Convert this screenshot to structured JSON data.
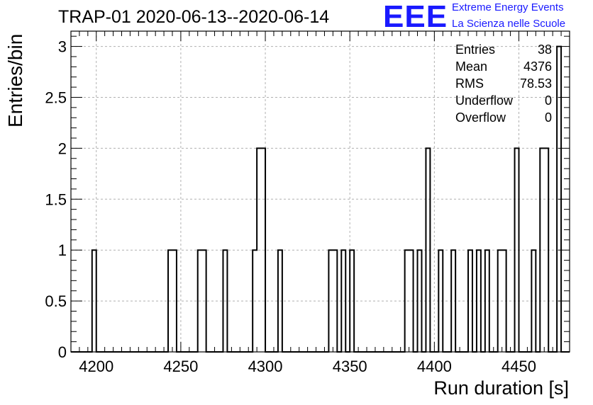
{
  "title": "TRAP-01 2020-06-13--2020-06-14",
  "logo": {
    "mark": "EEE",
    "line1": "Extreme Energy Events",
    "line2": "La Scienza nelle Scuole"
  },
  "stats": [
    {
      "label": "Entries",
      "value": "38"
    },
    {
      "label": "Mean",
      "value": "4376"
    },
    {
      "label": "RMS",
      "value": "78.53"
    },
    {
      "label": "Underflow",
      "value": "0"
    },
    {
      "label": "Overflow",
      "value": "0"
    }
  ],
  "chart_data": {
    "type": "histogram",
    "title": "TRAP-01 2020-06-13--2020-06-14",
    "xlabel": "Run duration [s]",
    "ylabel": "Entries/bin",
    "xlim": [
      4185,
      4480
    ],
    "ylim": [
      0,
      3.15
    ],
    "bin_width": 2.5,
    "grid": true,
    "x_ticks": [
      4200,
      4250,
      4300,
      4350,
      4400,
      4450
    ],
    "y_ticks": [
      0,
      0.5,
      1,
      1.5,
      2,
      2.5,
      3
    ],
    "y_tick_labels": [
      "0",
      "0.5",
      "1",
      "1.5",
      "2",
      "2.5",
      "3"
    ],
    "bins": [
      {
        "start": 4197.5,
        "count": 1
      },
      {
        "start": 4242.5,
        "count": 1
      },
      {
        "start": 4245.0,
        "count": 1
      },
      {
        "start": 4260.0,
        "count": 1
      },
      {
        "start": 4262.5,
        "count": 1
      },
      {
        "start": 4275.0,
        "count": 1
      },
      {
        "start": 4292.5,
        "count": 1
      },
      {
        "start": 4295.0,
        "count": 2
      },
      {
        "start": 4297.5,
        "count": 2
      },
      {
        "start": 4307.5,
        "count": 1
      },
      {
        "start": 4337.5,
        "count": 1
      },
      {
        "start": 4340.0,
        "count": 1
      },
      {
        "start": 4345.0,
        "count": 1
      },
      {
        "start": 4350.0,
        "count": 1
      },
      {
        "start": 4382.5,
        "count": 1
      },
      {
        "start": 4385.0,
        "count": 1
      },
      {
        "start": 4390.0,
        "count": 1
      },
      {
        "start": 4395.0,
        "count": 2
      },
      {
        "start": 4402.5,
        "count": 1
      },
      {
        "start": 4410.0,
        "count": 1
      },
      {
        "start": 4420.0,
        "count": 1
      },
      {
        "start": 4425.0,
        "count": 1
      },
      {
        "start": 4430.0,
        "count": 1
      },
      {
        "start": 4437.5,
        "count": 1
      },
      {
        "start": 4440.0,
        "count": 1
      },
      {
        "start": 4447.5,
        "count": 2
      },
      {
        "start": 4457.5,
        "count": 1
      },
      {
        "start": 4462.5,
        "count": 2
      },
      {
        "start": 4465.0,
        "count": 2
      },
      {
        "start": 4472.5,
        "count": 3
      }
    ]
  }
}
